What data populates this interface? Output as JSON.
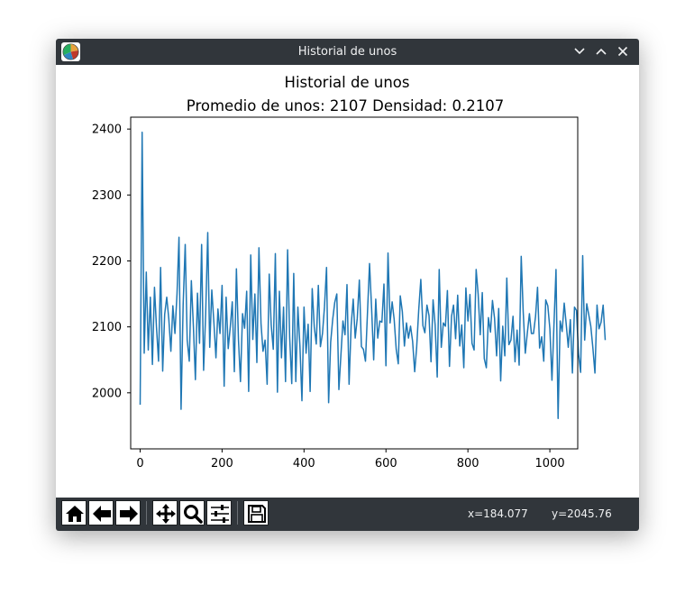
{
  "window": {
    "title": "Historial de unos"
  },
  "toolbar": {
    "buttons": [
      "home-icon",
      "back-arrow-icon",
      "forward-arrow-icon",
      "pan-icon",
      "zoom-icon",
      "configure-subplots-icon",
      "save-icon"
    ],
    "coord_x": "x=184.077",
    "coord_y": "y=2045.76"
  },
  "colors": {
    "line": "#1f77b4",
    "titlebar": "#31363b"
  },
  "chart_data": {
    "type": "line",
    "title": "Historial de unos",
    "subtitle": "Promedio de unos: 2107 Densidad: 0.2107",
    "xlim": [
      -23,
      1068
    ],
    "ylim": [
      1915,
      2418
    ],
    "xticks": [
      0,
      200,
      400,
      600,
      800,
      1000
    ],
    "yticks": [
      2000,
      2100,
      2200,
      2300,
      2400
    ],
    "xtick_labels": [
      "0",
      "200",
      "400",
      "600",
      "800",
      "1000"
    ],
    "ytick_labels": [
      "2000",
      "2100",
      "2200",
      "2300",
      "2400"
    ],
    "grid": false,
    "series": [
      {
        "x_start": 0,
        "x_step": 5,
        "values": [
          1982,
          2395,
          2060,
          2183,
          2065,
          2145,
          2043,
          2160,
          2100,
          2048,
          2190,
          2033,
          2119,
          2145,
          2112,
          2063,
          2132,
          2090,
          2150,
          2236,
          1975,
          2133,
          2225,
          2080,
          2048,
          2170,
          2100,
          2020,
          2151,
          2075,
          2225,
          2034,
          2120,
          2243,
          2069,
          2156,
          2107,
          2053,
          2127,
          2090,
          2163,
          2010,
          2145,
          2067,
          2100,
          2138,
          2032,
          2188,
          2080,
          2017,
          2120,
          2098,
          2154,
          2002,
          2209,
          2081,
          2150,
          2046,
          2220,
          2105,
          2063,
          2080,
          2013,
          2180,
          2103,
          2066,
          2211,
          2001,
          2154,
          2053,
          2130,
          2017,
          2217,
          2084,
          2014,
          2181,
          2017,
          2130,
          2070,
          1988,
          2130,
          2060,
          2104,
          2002,
          2158,
          2100,
          2074,
          2163,
          2070,
          2090,
          2130,
          2190,
          1985,
          2077,
          2111,
          2137,
          2150,
          2005,
          2056,
          2109,
          2088,
          2164,
          2013,
          2102,
          2142,
          2083,
          2113,
          2171,
          2070,
          2066,
          2048,
          2124,
          2196,
          2128,
          2050,
          2142,
          2083,
          2109,
          2107,
          2165,
          2041,
          2212,
          2106,
          2138,
          2112,
          2066,
          2044,
          2147,
          2123,
          2071,
          2106,
          2083,
          2101,
          2078,
          2032,
          2069,
          2126,
          2172,
          2102,
          2091,
          2133,
          2117,
          2047,
          2141,
          2103,
          2024,
          2187,
          2069,
          2106,
          2101,
          2155,
          2040,
          2116,
          2133,
          2082,
          2148,
          2071,
          2103,
          2038,
          2159,
          2109,
          2149,
          2075,
          2065,
          2187,
          2150,
          2088,
          2152,
          2052,
          2038,
          2114,
          2092,
          2140,
          2113,
          2056,
          2128,
          2018,
          2101,
          2056,
          2174,
          2073,
          2080,
          2116,
          2047,
          2095,
          2042,
          2207,
          2123,
          2060,
          2091,
          2120,
          2090,
          2090,
          2116,
          2160,
          2068,
          2085,
          2048,
          2141,
          2132,
          2097,
          2019,
          2102,
          2187,
          1961,
          2109,
          2093,
          2136,
          2103,
          2069,
          2111,
          2030,
          2130,
          2125,
          2059,
          2031,
          2208,
          2080,
          2135,
          2118,
          2101,
          2068,
          2030,
          2133,
          2097,
          2107,
          2133,
          2080
        ]
      }
    ]
  }
}
